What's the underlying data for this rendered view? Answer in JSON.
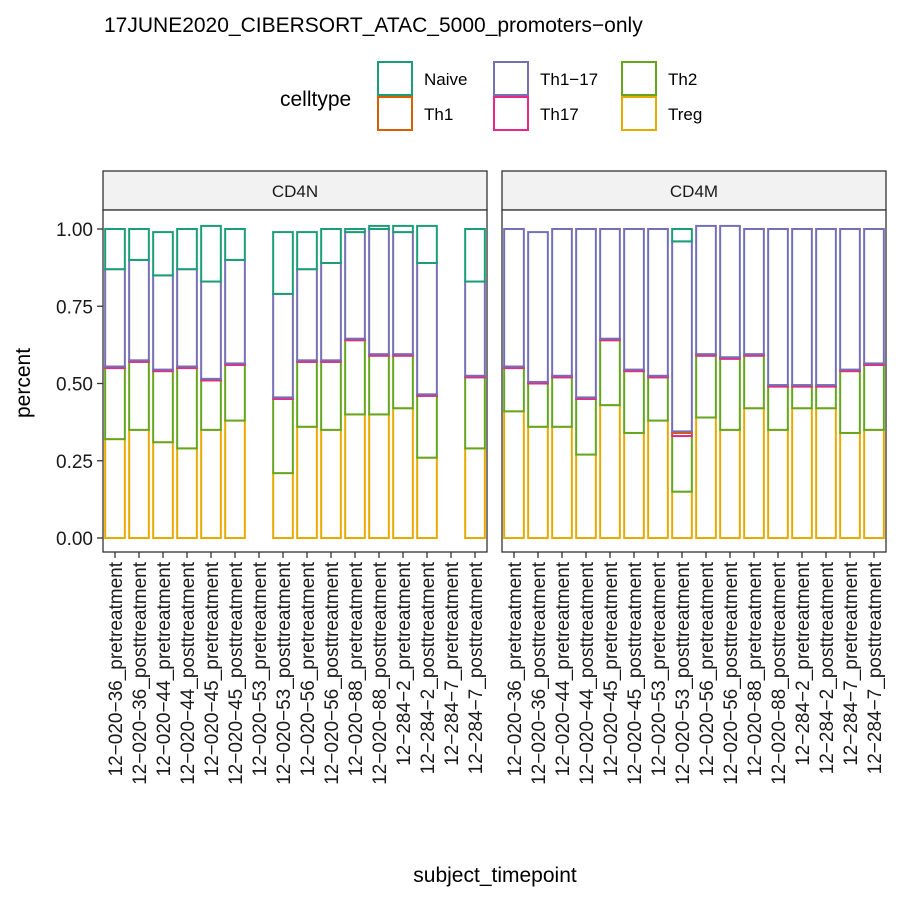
{
  "chart_data": {
    "type": "bar",
    "stacked": true,
    "title": "17JUNE2020_CIBERSORT_ATAC_5000_promoters−only",
    "xlabel": "subject_timepoint",
    "ylabel": "percent",
    "ylim": [
      0,
      1.15
    ],
    "yticks": [
      0.0,
      0.25,
      0.5,
      0.75,
      1.0
    ],
    "ytick_labels": [
      "0.00",
      "0.25",
      "0.50",
      "0.75",
      "1.00"
    ],
    "legend": {
      "title": "celltype",
      "placement": "top",
      "entries": [
        {
          "name": "Naive",
          "color": "#1b9e77"
        },
        {
          "name": "Th1",
          "color": "#d95f02"
        },
        {
          "name": "Th1−17",
          "color": "#7570b3"
        },
        {
          "name": "Th17",
          "color": "#e7298a"
        },
        {
          "name": "Th2",
          "color": "#66a61e"
        },
        {
          "name": "Treg",
          "color": "#e6ab02"
        }
      ]
    },
    "stack_order_bottom_to_top": [
      "Treg",
      "Th2",
      "Th17",
      "Th1",
      "Th1−17",
      "Naive"
    ],
    "panels": [
      {
        "name": "CD4N",
        "categories": [
          "12−020−36_pretreatment",
          "12−020−36_posttreatment",
          "12−020−44_pretreatment",
          "12−020−44_posttreatment",
          "12−020−45_pretreatment",
          "12−020−45_posttreatment",
          "12−020−53_pretreatment",
          "12−020−53_posttreatment",
          "12−020−56_pretreatment",
          "12−020−56_posttreatment",
          "12−020−88_pretreatment",
          "12−020−88_posttreatment",
          "12−284−2_pretreatment",
          "12−284−2_posttreatment",
          "12−284−7_pretreatment",
          "12−284−7_posttreatment"
        ],
        "series": [
          {
            "name": "Treg",
            "values": [
              0.32,
              0.35,
              0.31,
              0.29,
              0.35,
              0.38,
              null,
              0.21,
              0.36,
              0.35,
              0.4,
              0.4,
              0.42,
              0.26,
              null,
              0.29
            ]
          },
          {
            "name": "Th2",
            "values": [
              0.23,
              0.22,
              0.23,
              0.26,
              0.16,
              0.18,
              null,
              0.24,
              0.21,
              0.22,
              0.24,
              0.19,
              0.17,
              0.2,
              null,
              0.23
            ]
          },
          {
            "name": "Th17",
            "values": [
              0.005,
              0.005,
              0.005,
              0.005,
              0.005,
              0.005,
              null,
              0.005,
              0.005,
              0.005,
              0.005,
              0.005,
              0.005,
              0.005,
              null,
              0.005
            ]
          },
          {
            "name": "Th1",
            "values": [
              0,
              0,
              0,
              0,
              0,
              0,
              null,
              0,
              0,
              0,
              0,
              0,
              0,
              0,
              null,
              0
            ]
          },
          {
            "name": "Th1−17",
            "values": [
              0.315,
              0.325,
              0.305,
              0.315,
              0.315,
              0.335,
              null,
              0.335,
              0.295,
              0.315,
              0.345,
              0.405,
              0.395,
              0.425,
              null,
              0.305
            ]
          },
          {
            "name": "Naive",
            "values": [
              0.13,
              0.1,
              0.14,
              0.13,
              0.18,
              0.1,
              null,
              0.2,
              0.12,
              0.11,
              0.01,
              0.01,
              0.02,
              0.12,
              null,
              0.17
            ]
          }
        ]
      },
      {
        "name": "CD4M",
        "categories": [
          "12−020−36_pretreatment",
          "12−020−36_posttreatment",
          "12−020−44_pretreatment",
          "12−020−44_posttreatment",
          "12−020−45_pretreatment",
          "12−020−45_posttreatment",
          "12−020−53_pretreatment",
          "12−020−53_posttreatment",
          "12−020−56_pretreatment",
          "12−020−56_posttreatment",
          "12−020−88_pretreatment",
          "12−020−88_posttreatment",
          "12−284−2_pretreatment",
          "12−284−2_posttreatment",
          "12−284−7_pretreatment",
          "12−284−7_posttreatment"
        ],
        "series": [
          {
            "name": "Treg",
            "values": [
              0.41,
              0.36,
              0.36,
              0.27,
              0.43,
              0.34,
              0.38,
              0.15,
              0.39,
              0.35,
              0.42,
              0.35,
              0.42,
              0.42,
              0.34,
              0.35
            ]
          },
          {
            "name": "Th2",
            "values": [
              0.14,
              0.14,
              0.16,
              0.18,
              0.21,
              0.2,
              0.14,
              0.18,
              0.2,
              0.23,
              0.17,
              0.14,
              0.07,
              0.07,
              0.2,
              0.21
            ]
          },
          {
            "name": "Th17",
            "values": [
              0.005,
              0.005,
              0.005,
              0.005,
              0.005,
              0.005,
              0.005,
              0.01,
              0.005,
              0.005,
              0.005,
              0.005,
              0.005,
              0.005,
              0.005,
              0.005
            ]
          },
          {
            "name": "Th1",
            "values": [
              0,
              0,
              0,
              0,
              0,
              0,
              0,
              0.005,
              0,
              0,
              0,
              0,
              0,
              0,
              0,
              0
            ]
          },
          {
            "name": "Th1−17",
            "values": [
              0.445,
              0.485,
              0.475,
              0.545,
              0.355,
              0.455,
              0.475,
              0.615,
              0.415,
              0.425,
              0.405,
              0.505,
              0.505,
              0.505,
              0.455,
              0.435
            ]
          },
          {
            "name": "Naive",
            "values": [
              0,
              0,
              0,
              0,
              0,
              0,
              0,
              0.04,
              0,
              0,
              0,
              0,
              0,
              0,
              0,
              0
            ]
          }
        ]
      }
    ]
  }
}
